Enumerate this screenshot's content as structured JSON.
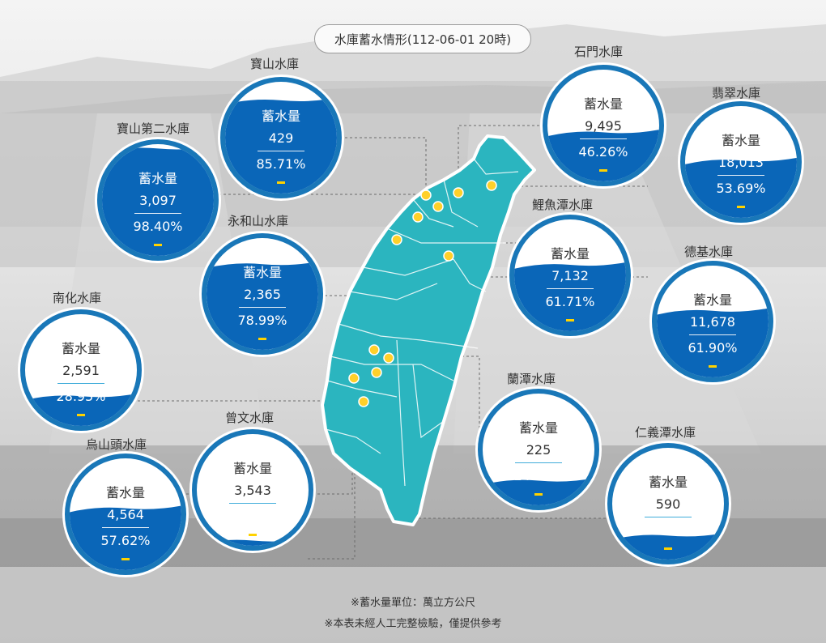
{
  "header": {
    "title": "水庫蓄水情形(112-06-01 20時)"
  },
  "label_capacity": "蓄水量",
  "colors": {
    "ring": "#1977b8",
    "water": "#0a66b8",
    "map": "#29b3bd",
    "dot": "#ffd02a",
    "dash": "#ffd200"
  },
  "reservoirs": [
    {
      "name": "寶山水庫",
      "storage": "429",
      "percent": "85.71%",
      "fraction": 0.8571
    },
    {
      "name": "寶山第二水庫",
      "storage": "3,097",
      "percent": "98.40%",
      "fraction": 0.984
    },
    {
      "name": "永和山水庫",
      "storage": "2,365",
      "percent": "78.99%",
      "fraction": 0.7899
    },
    {
      "name": "南化水庫",
      "storage": "2,591",
      "percent": "28.95%",
      "fraction": 0.2895
    },
    {
      "name": "烏山頭水庫",
      "storage": "4,564",
      "percent": "57.62%",
      "fraction": 0.5762
    },
    {
      "name": "曾文水庫",
      "storage": "3,543",
      "percent": "6.99%",
      "fraction": 0.0699
    },
    {
      "name": "石門水庫",
      "storage": "9,495",
      "percent": "46.26%",
      "fraction": 0.4626
    },
    {
      "name": "翡翠水庫",
      "storage": "18,013",
      "percent": "53.69%",
      "fraction": 0.5369
    },
    {
      "name": "鯉魚潭水庫",
      "storage": "7,132",
      "percent": "61.71%",
      "fraction": 0.6171
    },
    {
      "name": "德基水庫",
      "storage": "11,678",
      "percent": "61.90%",
      "fraction": 0.619
    },
    {
      "name": "蘭潭水庫",
      "storage": "225",
      "percent": "24.40%",
      "fraction": 0.244
    },
    {
      "name": "仁義潭水庫",
      "storage": "590",
      "percent": "23.80%",
      "fraction": 0.238
    }
  ],
  "footer": {
    "unit_note": "※蓄水量單位：萬立方公尺",
    "disclaimer": "※本表未經人工完整檢驗，僅提供參考"
  }
}
